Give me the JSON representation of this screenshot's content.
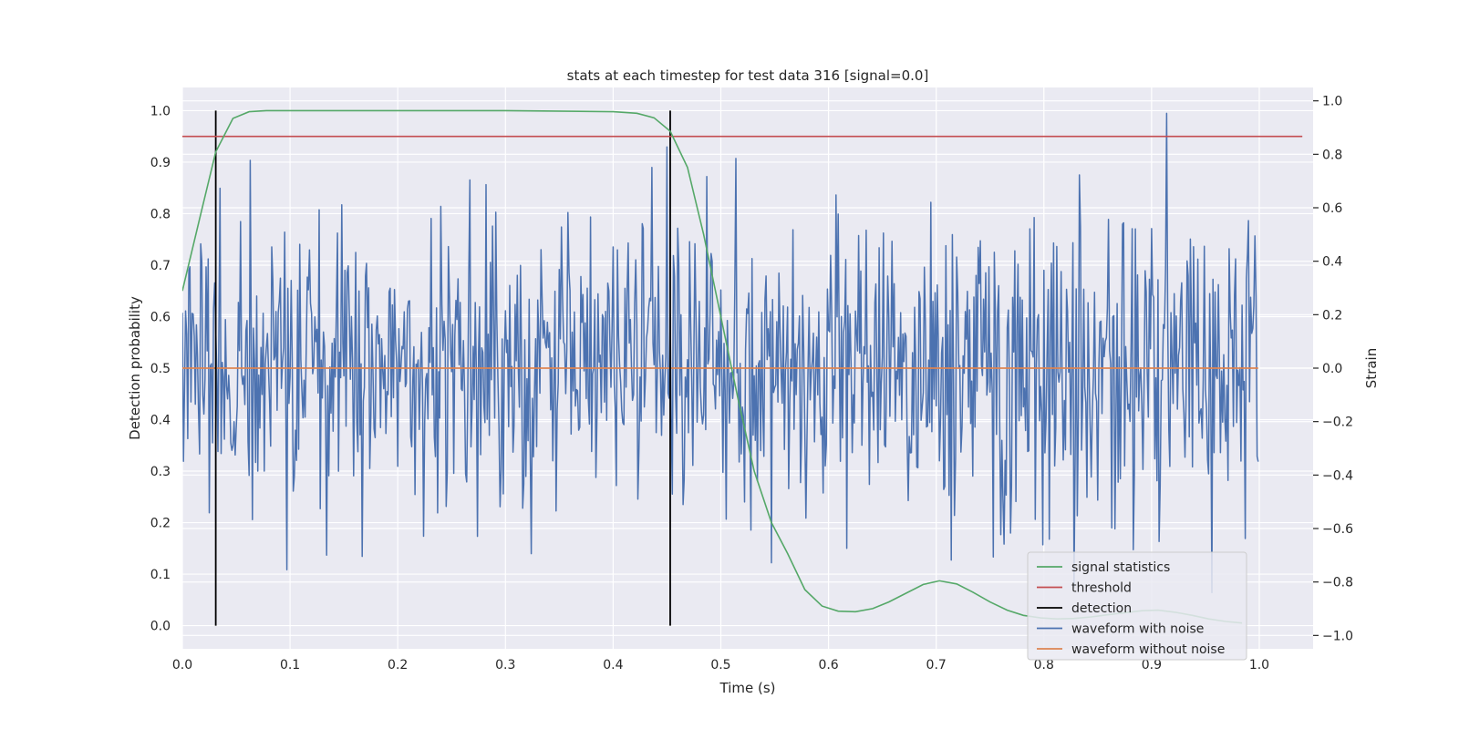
{
  "chart_data": {
    "type": "line",
    "title": "stats at each timestep for test data 316 [signal=0.0]",
    "xlabel": "Time (s)",
    "ylabel": "Detection probability",
    "ylabel_right": "Strain",
    "xlim": [
      0.0,
      1.05
    ],
    "ylim": [
      -0.045,
      1.045
    ],
    "ylim_right": [
      -1.05,
      1.05
    ],
    "xticks": [
      "0.0",
      "0.1",
      "0.2",
      "0.3",
      "0.4",
      "0.5",
      "0.6",
      "0.7",
      "0.8",
      "0.9",
      "1.0"
    ],
    "xtick_values": [
      0.0,
      0.1,
      0.2,
      0.3,
      0.4,
      0.5,
      0.6,
      0.7,
      0.8,
      0.9,
      1.0
    ],
    "yticks": [
      "0.0",
      "0.1",
      "0.2",
      "0.3",
      "0.4",
      "0.5",
      "0.6",
      "0.7",
      "0.8",
      "0.9",
      "1.0"
    ],
    "ytick_values": [
      0.0,
      0.1,
      0.2,
      0.3,
      0.4,
      0.5,
      0.6,
      0.7,
      0.8,
      0.9,
      1.0
    ],
    "yticks_right": [
      "−1.0",
      "−0.8",
      "−0.6",
      "−0.4",
      "−0.2",
      "0.0",
      "0.2",
      "0.4",
      "0.6",
      "0.8",
      "1.0"
    ],
    "ytick_values_right": [
      -1.0,
      -0.8,
      -0.6,
      -0.4,
      -0.2,
      0.0,
      0.2,
      0.4,
      0.6,
      0.8,
      1.0
    ],
    "grid": true,
    "legend_position": "bottom-right",
    "colors": {
      "background": "#eaeaf2",
      "grid": "#ffffff",
      "signal": "#55a868",
      "threshold": "#c44e52",
      "detection": "#000000",
      "noisy": "#4c72b0",
      "clean": "#dd8452"
    },
    "series": [
      {
        "name": "signal statistics",
        "axis": "left",
        "x": [
          0.0,
          0.016,
          0.031,
          0.047,
          0.062,
          0.078,
          0.094,
          0.109,
          0.125,
          0.2,
          0.3,
          0.4,
          0.422,
          0.438,
          0.453,
          0.469,
          0.484,
          0.5,
          0.516,
          0.531,
          0.547,
          0.562,
          0.578,
          0.594,
          0.609,
          0.625,
          0.641,
          0.656,
          0.672,
          0.688,
          0.703,
          0.719,
          0.734,
          0.75,
          0.766,
          0.781,
          0.797,
          0.812,
          0.828,
          0.844,
          0.859,
          0.875,
          0.891,
          0.906,
          0.922,
          0.938,
          0.953,
          0.969,
          0.984
        ],
        "values": [
          0.65,
          0.79,
          0.92,
          0.985,
          0.998,
          1.0,
          1.0,
          1.0,
          1.0,
          1.0,
          1.0,
          0.998,
          0.995,
          0.986,
          0.96,
          0.89,
          0.76,
          0.6,
          0.44,
          0.3,
          0.2,
          0.14,
          0.07,
          0.038,
          0.028,
          0.027,
          0.033,
          0.046,
          0.063,
          0.08,
          0.087,
          0.081,
          0.065,
          0.046,
          0.03,
          0.02,
          0.015,
          0.013,
          0.014,
          0.017,
          0.021,
          0.025,
          0.029,
          0.03,
          0.026,
          0.02,
          0.013,
          0.008,
          0.005
        ]
      },
      {
        "name": "threshold",
        "axis": "left",
        "x": [
          0.0,
          1.04
        ],
        "values": [
          0.95,
          0.95
        ]
      },
      {
        "name": "detection",
        "axis": "left",
        "x": [
          0.031,
          0.453
        ],
        "values": [
          1.0,
          1.0
        ]
      },
      {
        "name": "waveform with noise",
        "axis": "right",
        "samples": 1000,
        "xrange": [
          0.0,
          0.999
        ],
        "std": 0.28,
        "range": [
          -0.84,
          1.0
        ]
      },
      {
        "name": "waveform without noise",
        "axis": "right",
        "x": [
          0.0,
          0.999
        ],
        "values": [
          0.0,
          0.0
        ]
      }
    ]
  }
}
